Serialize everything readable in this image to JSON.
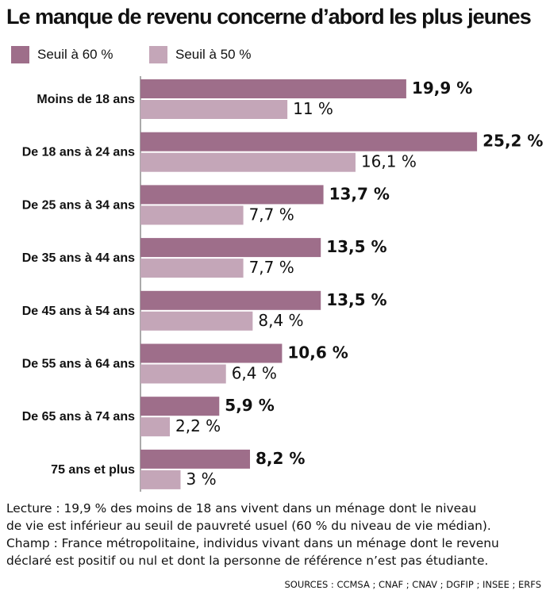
{
  "chart_data": {
    "type": "bar",
    "orientation": "horizontal",
    "title": "Le manque de revenu concerne d’abord les plus jeunes",
    "categories": [
      "Moins de 18 ans",
      "De 18 ans à 24 ans",
      "De 25 ans à 34 ans",
      "De 35 ans à 44 ans",
      "De 45 ans à 54 ans",
      "De 55 ans à 64 ans",
      "De 65 ans à 74 ans",
      "75 ans et plus"
    ],
    "series": [
      {
        "name": "Seuil à 60 %",
        "color": "#9e6e8a",
        "values": [
          19.9,
          25.2,
          13.7,
          13.5,
          13.5,
          10.6,
          5.9,
          8.2
        ],
        "labels": [
          "19,9 %",
          "25,2 %",
          "13,7 %",
          "13,5 %",
          "13,5 %",
          "10,6 %",
          "5,9 %",
          "8,2 %"
        ]
      },
      {
        "name": "Seuil à 50 %",
        "color": "#c4a6b8",
        "values": [
          11,
          16.1,
          7.7,
          7.7,
          8.4,
          6.4,
          2.2,
          3
        ],
        "labels": [
          "11 %",
          "16,1 %",
          "7,7 %",
          "7,7 %",
          "8,4 %",
          "6,4 %",
          "2,2 %",
          "3 %"
        ]
      }
    ],
    "legend": "top-left",
    "grid": false
  },
  "notes": {
    "lecture_line1": "Lecture : 19,9 % des moins de 18 ans vivent dans un ménage dont le niveau",
    "lecture_line2": "de vie est inférieur au seuil de pauvreté usuel (60 % du niveau de vie médian).",
    "champ_line1": "Champ : France métropolitaine, individus vivant dans un ménage dont le revenu",
    "champ_line2": "déclaré est positif ou nul et dont la personne de référence n’est pas étudiante."
  },
  "sources": "SOURCES : CCMSA ; CNAF ; CNAV ; DGFIP ; INSEE ; ERFS"
}
